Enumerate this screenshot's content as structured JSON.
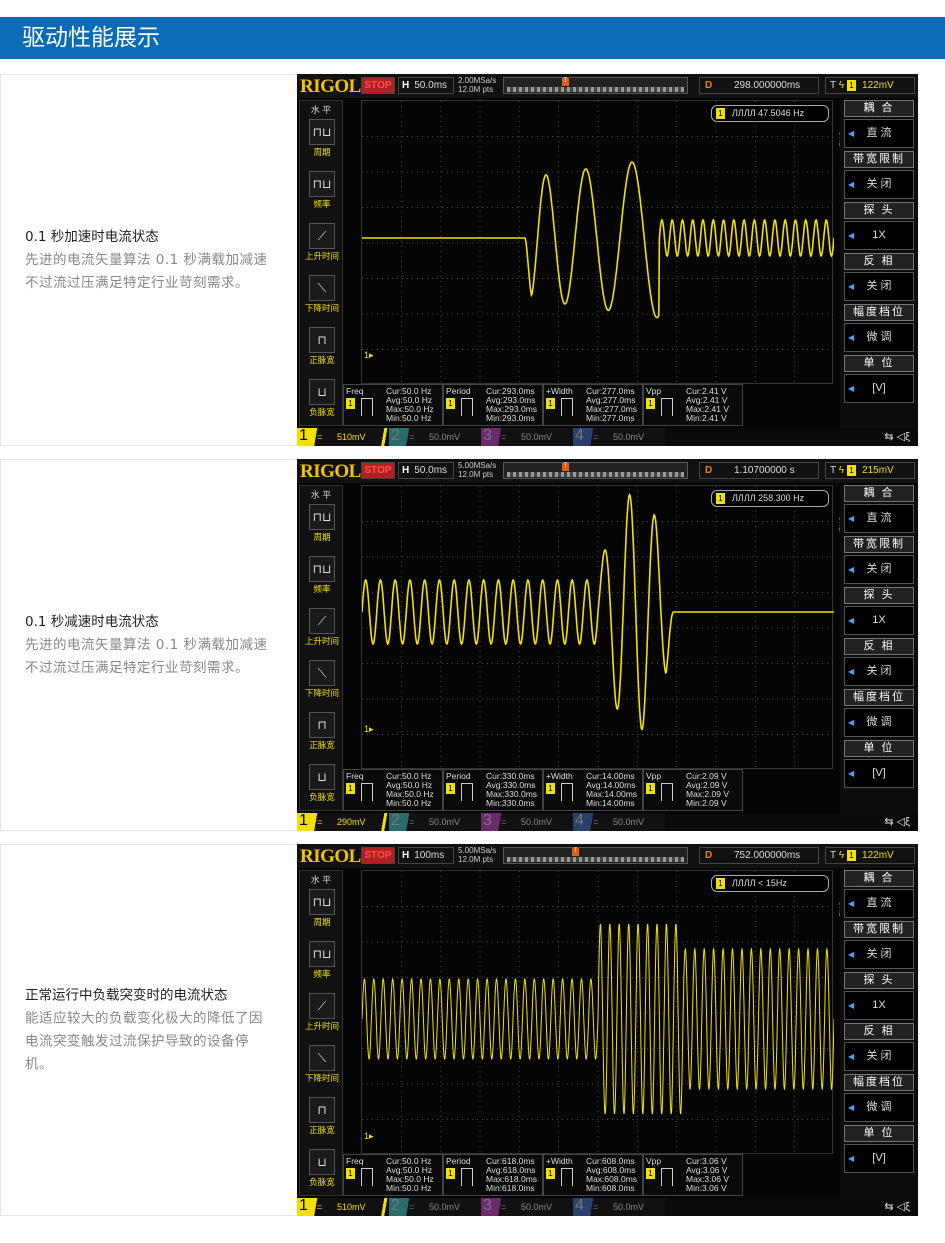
{
  "page_title": "驱动性能展示",
  "colors": {
    "title_bg": "#0b6bb6",
    "trace": "#f2e000"
  },
  "scope_common": {
    "logo": "RIGOL",
    "status": "STOP",
    "h_label": "H",
    "d_label": "D",
    "t_label": "T",
    "ch_badge": "1",
    "horizontal_label": "水 平",
    "left_buttons": [
      "周期",
      "频率",
      "上升时间",
      "下降时间",
      "正脉宽",
      "负脉宽"
    ],
    "right_menu": [
      {
        "title": "耦 合",
        "value": "直 流"
      },
      {
        "title": "带宽限制",
        "value": "关 闭"
      },
      {
        "title": "探 头",
        "value": "1X"
      },
      {
        "title": "反 相",
        "value": "关 闭"
      },
      {
        "title": "幅度档位",
        "value": "微 调"
      },
      {
        "title": "单 位",
        "value": "[V]"
      }
    ],
    "ch1_side_label": "CH1",
    "meas_names": [
      "Freq",
      "Period",
      "+Width",
      "Vpp"
    ],
    "channels_off": [
      {
        "num": "2",
        "scale": "50.0mV"
      },
      {
        "num": "3",
        "scale": "50.0mV"
      },
      {
        "num": "4",
        "scale": "50.0mV"
      }
    ],
    "coupling_symbol": "="
  },
  "panels": [
    {
      "caption": "0.1 秒加速时电流状态",
      "description": "先进的电流矢量算法 0.1 秒满载加减速不过流过压满足特定行业苛刻需求。",
      "scope": {
        "timebase": "50.0ms",
        "sample_rate": "2.00MSa/s",
        "points": "12.0M pts",
        "delay": "298.000000ms",
        "trigger_level": "122mV",
        "frequency_counter": "47.5046 Hz",
        "ch1_scale": "510mV",
        "waveform": "acceleration",
        "measurements": [
          [
            "Cur:50.0 Hz",
            "Avg:50.0 Hz",
            "Max:50.0 Hz",
            "Min:50.0 Hz"
          ],
          [
            "Cur:293.0ms",
            "Avg:293.0ms",
            "Max:293.0ms",
            "Min:293.0ms"
          ],
          [
            "Cur:277.0ms",
            "Avg:277.0ms",
            "Max:277.0ms",
            "Min:277.0ms"
          ],
          [
            "Cur:2.41 V",
            "Avg:2.41 V",
            "Max:2.41 V",
            "Min:2.41 V"
          ]
        ]
      }
    },
    {
      "caption": "0.1 秒减速时电流状态",
      "description": "先进的电流矢量算法 0.1 秒满载加减速不过流过压满足特定行业苛刻需求。",
      "scope": {
        "timebase": "50.0ms",
        "sample_rate": "5.00MSa/s",
        "points": "12.0M pts",
        "delay": "1.10700000 s",
        "trigger_level": "215mV",
        "frequency_counter": "258.300 Hz",
        "ch1_scale": "290mV",
        "waveform": "deceleration",
        "measurements": [
          [
            "Cur:50.0 Hz",
            "Avg:50.0 Hz",
            "Max:50.0 Hz",
            "Min:50.0 Hz"
          ],
          [
            "Cur:330.0ms",
            "Avg:330.0ms",
            "Max:330.0ms",
            "Min:330.0ms"
          ],
          [
            "Cur:14.00ms",
            "Avg:14.00ms",
            "Max:14.00ms",
            "Min:14.00ms"
          ],
          [
            "Cur:2.09 V",
            "Avg:2.09 V",
            "Max:2.09 V",
            "Min:2.09 V"
          ]
        ]
      }
    },
    {
      "caption": "正常运行中负载突变时的电流状态",
      "description": "能适应较大的负载变化极大的降低了因电流突变触发过流保护导致的设备停机。",
      "scope": {
        "timebase": "100ms",
        "sample_rate": "5.00MSa/s",
        "points": "12.0M pts",
        "delay": "752.000000ms",
        "trigger_level": "122mV",
        "frequency_counter": "< 15Hz",
        "ch1_scale": "510mV",
        "waveform": "load-step",
        "measurements": [
          [
            "Cur:50.0 Hz",
            "Avg:50.0 Hz",
            "Max:50.0 Hz",
            "Min:50.0 Hz"
          ],
          [
            "Cur:618.0ms",
            "Avg:618.0ms",
            "Max:618.0ms",
            "Min:618.0ms"
          ],
          [
            "Cur:608.0ms",
            "Avg:608.0ms",
            "Max:608.0ms",
            "Min:608.0ms"
          ],
          [
            "Cur:3.06 V",
            "Avg:3.06 V",
            "Max:3.06 V",
            "Min:3.06 V"
          ]
        ]
      }
    }
  ]
}
